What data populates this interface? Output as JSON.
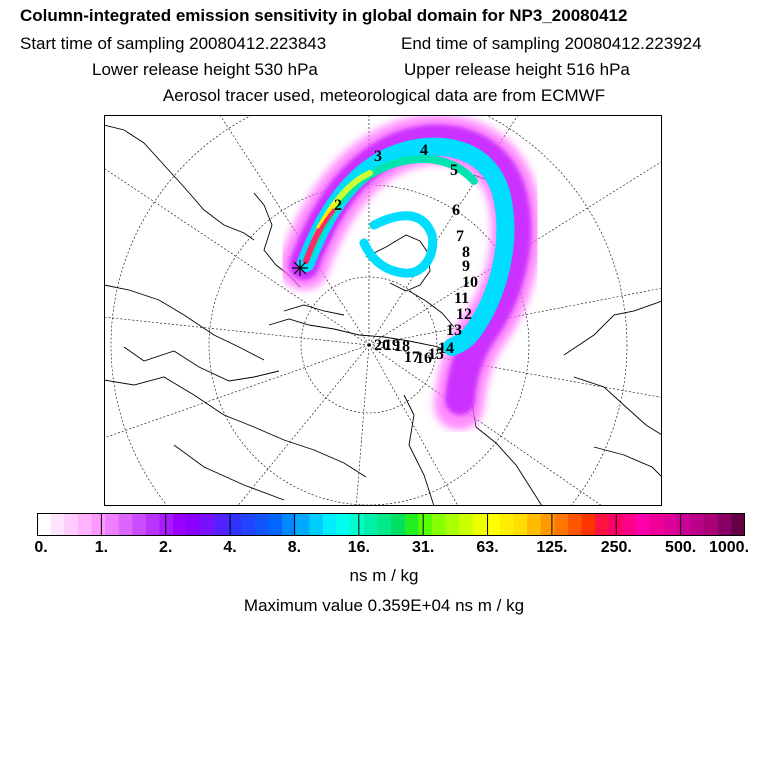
{
  "header": {
    "title": "Column-integrated emission sensitivity in global domain for NP3_20080412",
    "start_label": "Start time of sampling 20080412.223843",
    "end_label": "End time of sampling 20080412.223924",
    "lower_label": "Lower release height  530 hPa",
    "upper_label": "Upper release height  516 hPa",
    "tracer_label": "Aerosol tracer used, meteorological data are from ECMWF"
  },
  "map": {
    "projection": "polar stereographic (north)",
    "plume_colors": [
      "#ff66ff",
      "#cc33ff",
      "#00ddff",
      "#00e5b0",
      "#ccff33",
      "#ffee00",
      "#ff2a6a"
    ],
    "day_markers": [
      "2",
      "3",
      "4",
      "5",
      "6",
      "7",
      "8",
      "9",
      "10",
      "11",
      "12",
      "13",
      "14",
      "15",
      "16",
      "17",
      "18",
      "19",
      "20"
    ]
  },
  "colorbar": {
    "colors": [
      "#ffffff",
      "#ffe4ff",
      "#ffccff",
      "#ffb3ff",
      "#ff99ff",
      "#ee80ff",
      "#dd66ff",
      "#cc4dff",
      "#bb33ff",
      "#aa1aff",
      "#9900ff",
      "#8800ff",
      "#7711ff",
      "#5522ff",
      "#3333ff",
      "#2244ff",
      "#1155ff",
      "#0066ff",
      "#0088ff",
      "#00aaff",
      "#00ccff",
      "#00eeff",
      "#00ffee",
      "#00ffcc",
      "#00f0a8",
      "#00e888",
      "#00e060",
      "#22ee22",
      "#55ff00",
      "#88ff00",
      "#aaff00",
      "#ccff00",
      "#eeff00",
      "#ffff00",
      "#ffee00",
      "#ffdd00",
      "#ffbb00",
      "#ff9900",
      "#ff7700",
      "#ff5500",
      "#ff3300",
      "#ff1144",
      "#ff0066",
      "#ff0088",
      "#ff00aa",
      "#ee0099",
      "#dd0099",
      "#cc0099",
      "#bb0088",
      "#aa0077",
      "#880066",
      "#660044"
    ],
    "tick_labels": [
      "0.",
      "1.",
      "2.",
      "4.",
      "8.",
      "16.",
      "31.",
      "63.",
      "125.",
      "250.",
      "500.",
      "1000."
    ],
    "unit": "ns m / kg"
  },
  "footer": {
    "max_value_label": "Maximum value  0.359E+04 ns m / kg"
  }
}
